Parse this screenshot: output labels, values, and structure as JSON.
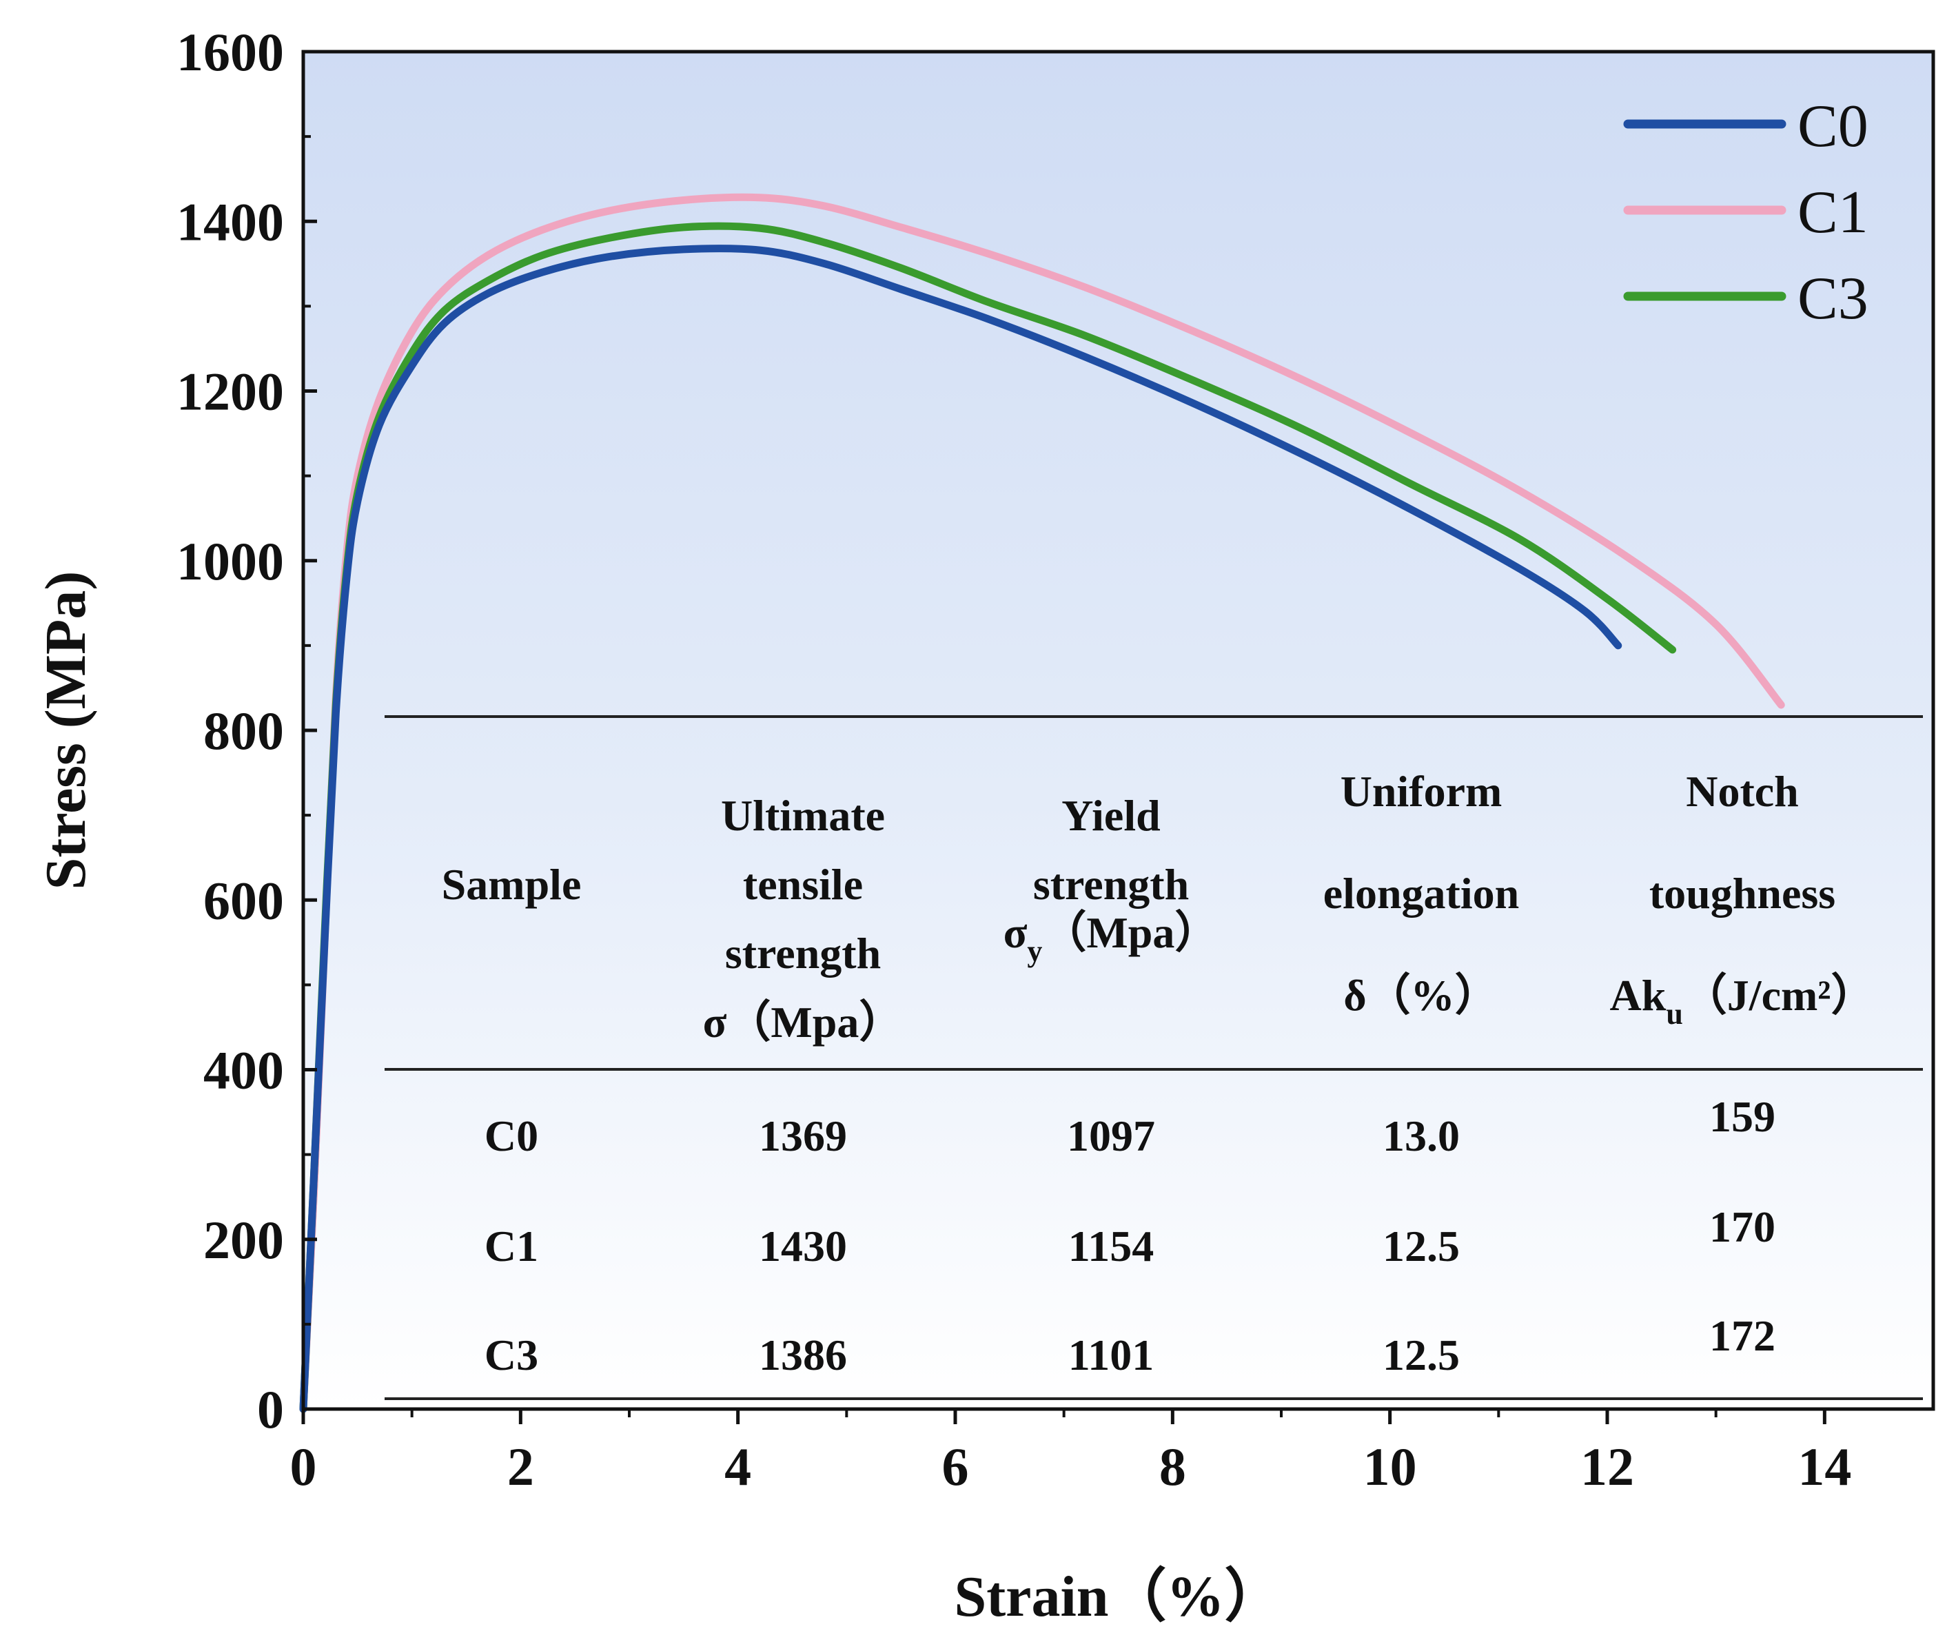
{
  "chart_data": {
    "type": "line",
    "xlabel": "Strain（%）",
    "ylabel": "Stress (MPa)",
    "xlim": [
      0,
      15
    ],
    "ylim": [
      0,
      1600
    ],
    "xticks": [
      0,
      2,
      4,
      6,
      8,
      10,
      12,
      14
    ],
    "yticks": [
      0,
      200,
      400,
      600,
      800,
      1000,
      1200,
      1400,
      1600
    ],
    "xtick_labels": [
      "0",
      "2",
      "4",
      "6",
      "8",
      "10",
      "12",
      "14"
    ],
    "ytick_labels": [
      "0",
      "200",
      "400",
      "600",
      "800",
      "1000",
      "1200",
      "1400",
      "1600"
    ],
    "legend_position": "top-right",
    "series": [
      {
        "name": "C0",
        "color": "#1f4ea3",
        "points": [
          [
            0,
            0
          ],
          [
            0.1,
            280
          ],
          [
            0.2,
            560
          ],
          [
            0.3,
            820
          ],
          [
            0.4,
            980
          ],
          [
            0.5,
            1070
          ],
          [
            0.7,
            1160
          ],
          [
            1.0,
            1230
          ],
          [
            1.3,
            1280
          ],
          [
            1.7,
            1315
          ],
          [
            2.2,
            1340
          ],
          [
            2.8,
            1358
          ],
          [
            3.5,
            1367
          ],
          [
            4.2,
            1366
          ],
          [
            4.8,
            1350
          ],
          [
            5.5,
            1320
          ],
          [
            6.3,
            1285
          ],
          [
            7.2,
            1240
          ],
          [
            8.2,
            1185
          ],
          [
            9.2,
            1125
          ],
          [
            10.2,
            1060
          ],
          [
            11.2,
            990
          ],
          [
            11.8,
            940
          ],
          [
            12.1,
            900
          ]
        ]
      },
      {
        "name": "C1",
        "color": "#f0a5bf",
        "points": [
          [
            0,
            0
          ],
          [
            0.1,
            260
          ],
          [
            0.2,
            560
          ],
          [
            0.3,
            840
          ],
          [
            0.4,
            1010
          ],
          [
            0.5,
            1100
          ],
          [
            0.7,
            1190
          ],
          [
            1.0,
            1270
          ],
          [
            1.3,
            1320
          ],
          [
            1.7,
            1360
          ],
          [
            2.2,
            1390
          ],
          [
            2.8,
            1412
          ],
          [
            3.5,
            1425
          ],
          [
            4.2,
            1428
          ],
          [
            4.8,
            1418
          ],
          [
            5.5,
            1393
          ],
          [
            6.3,
            1362
          ],
          [
            7.2,
            1322
          ],
          [
            8.2,
            1270
          ],
          [
            9.2,
            1213
          ],
          [
            10.2,
            1150
          ],
          [
            11.2,
            1082
          ],
          [
            12.2,
            1003
          ],
          [
            13.0,
            925
          ],
          [
            13.6,
            830
          ]
        ]
      },
      {
        "name": "C3",
        "color": "#3a9b2e",
        "points": [
          [
            0,
            0
          ],
          [
            0.1,
            280
          ],
          [
            0.2,
            570
          ],
          [
            0.3,
            830
          ],
          [
            0.4,
            990
          ],
          [
            0.5,
            1080
          ],
          [
            0.7,
            1170
          ],
          [
            1.0,
            1245
          ],
          [
            1.3,
            1295
          ],
          [
            1.7,
            1330
          ],
          [
            2.2,
            1360
          ],
          [
            2.8,
            1380
          ],
          [
            3.5,
            1393
          ],
          [
            4.2,
            1392
          ],
          [
            4.8,
            1375
          ],
          [
            5.5,
            1345
          ],
          [
            6.3,
            1305
          ],
          [
            7.2,
            1265
          ],
          [
            8.2,
            1212
          ],
          [
            9.2,
            1155
          ],
          [
            10.2,
            1090
          ],
          [
            11.2,
            1025
          ],
          [
            12.0,
            955
          ],
          [
            12.6,
            895
          ]
        ]
      }
    ],
    "table": {
      "headers": [
        {
          "lines": [
            "Sample"
          ]
        },
        {
          "lines": [
            "Ultimate",
            "tensile",
            "strength"
          ],
          "symbol": "σ",
          "sub": "",
          "unit": "（Mpa）"
        },
        {
          "lines": [
            "Yield",
            "strength"
          ],
          "symbol": "σ",
          "sub": "y",
          "unit": "（Mpa）"
        },
        {
          "lines": [
            "Uniform",
            "elongation"
          ],
          "symbol": "δ",
          "sub": "",
          "unit": "（%）"
        },
        {
          "lines": [
            "Notch",
            "toughness"
          ],
          "symbol": "Ak",
          "sub": "u",
          "unit": "（J/cm²）"
        }
      ],
      "rows": [
        [
          "C0",
          "1369",
          "1097",
          "13.0",
          "159"
        ],
        [
          "C1",
          "1430",
          "1154",
          "12.5",
          "170"
        ],
        [
          "C3",
          "1386",
          "1101",
          "12.5",
          "172"
        ]
      ]
    }
  }
}
